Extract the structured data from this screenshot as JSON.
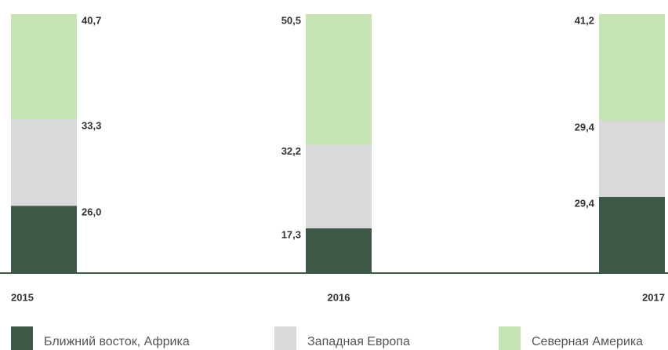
{
  "chart_data": {
    "type": "bar",
    "stacked": true,
    "categories": [
      "2015",
      "2016",
      "2017"
    ],
    "ylim": [
      0,
      100
    ],
    "series": [
      {
        "name": "Ближний восток, Африка",
        "color": "#3d5847",
        "values": [
          26.0,
          17.3,
          29.4
        ],
        "value_labels": [
          "26,0",
          "17,3",
          "29,4"
        ]
      },
      {
        "name": "Западная Европа",
        "color": "#d8d9db",
        "values": [
          33.3,
          32.2,
          29.4
        ],
        "value_labels": [
          "33,3",
          "32,2",
          "29,4"
        ]
      },
      {
        "name": "Северная Америка",
        "color": "#c6e3b5",
        "values": [
          40.7,
          50.5,
          41.2
        ],
        "value_labels": [
          "40,7",
          "50,5",
          "41,2"
        ]
      }
    ]
  }
}
